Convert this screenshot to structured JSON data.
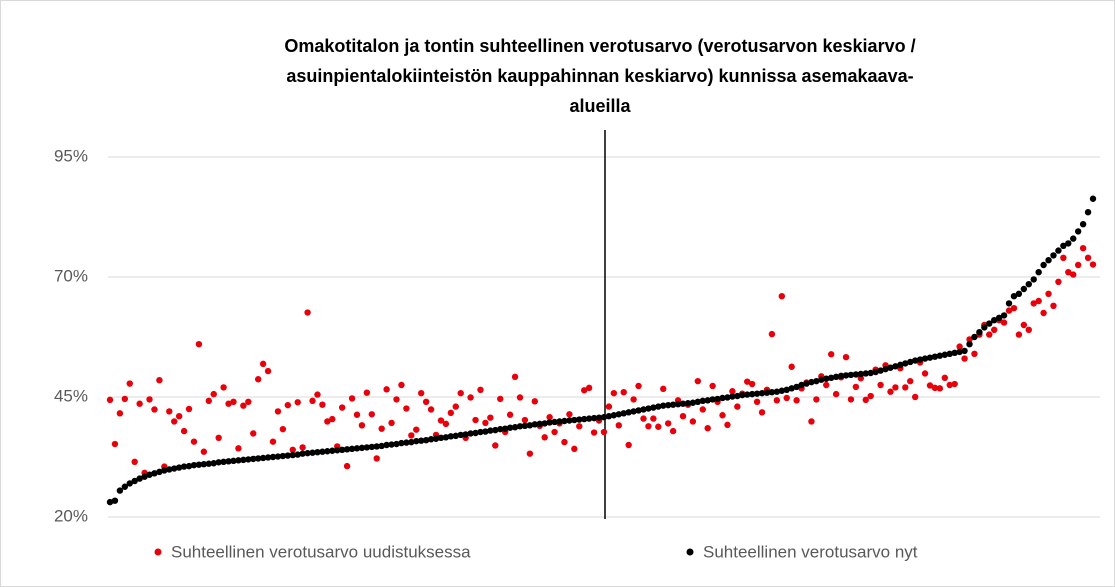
{
  "chart_data": {
    "type": "scatter",
    "title": [
      "Omakotitalon ja tontin suhteellinen verotusarvo (verotusarvon keskiarvo /",
      "asuinpientalokiinteistön kauppahinnan keskiarvo) kunnissa asemakaava-",
      "alueilla"
    ],
    "ylim": [
      20,
      95
    ],
    "yticks": [
      {
        "value": 20,
        "label": "20%"
      },
      {
        "value": 45,
        "label": "45%"
      },
      {
        "value": 70,
        "label": "70%"
      },
      {
        "value": 95,
        "label": "95%"
      }
    ],
    "grid": true,
    "legend": "bottom",
    "series": [
      {
        "name": "Suhteellinen verotusarvo uudistuksessa",
        "color": "#e8000b",
        "values": [
          44.4,
          35.2,
          41.6,
          44.6,
          47.8,
          31.5,
          43.6,
          29.2,
          44.5,
          42.4,
          48.5,
          30.5,
          42.0,
          39.9,
          41.0,
          37.9,
          42.5,
          35.7,
          56.0,
          33.6,
          44.2,
          45.6,
          36.5,
          47.0,
          43.6,
          44.0,
          34.3,
          43.2,
          44.0,
          37.4,
          48.7,
          51.9,
          50.4,
          35.7,
          42.0,
          38.3,
          43.3,
          34.0,
          43.9,
          34.5,
          62.6,
          44.2,
          45.5,
          43.4,
          39.9,
          40.4,
          34.7,
          42.8,
          30.6,
          44.7,
          41.3,
          39.1,
          45.9,
          41.4,
          32.2,
          38.4,
          46.6,
          39.6,
          44.5,
          47.5,
          42.6,
          37.0,
          38.2,
          45.8,
          44.0,
          42.4,
          37.1,
          40.1,
          39.4,
          41.7,
          43.0,
          45.8,
          36.5,
          44.9,
          40.2,
          46.5,
          39.6,
          40.7,
          34.9,
          44.6,
          37.7,
          41.3,
          49.2,
          44.9,
          40.2,
          33.2,
          44.1,
          39.0,
          36.6,
          40.8,
          37.7,
          39.5,
          35.6,
          41.4,
          34.2,
          38.9,
          46.4,
          46.9,
          37.6,
          40.1,
          37.7,
          43.0,
          45.8,
          39.1,
          46.0,
          35.0,
          44.5,
          47.3,
          40.5,
          38.9,
          40.5,
          38.8,
          46.7,
          39.5,
          37.9,
          44.3,
          41.0,
          43.4,
          39.9,
          48.3,
          42.4,
          38.5,
          47.3,
          44.0,
          41.2,
          39.2,
          46.2,
          43.0,
          45.7,
          48.2,
          47.7,
          44.0,
          41.8,
          46.5,
          58.1,
          44.3,
          66.0,
          44.8,
          51.3,
          44.3,
          46.8,
          48.0,
          39.9,
          44.5,
          49.3,
          47.5,
          53.9,
          45.6,
          49.1,
          53.3,
          44.5,
          47.1,
          48.9,
          44.4,
          45.2,
          50.7,
          47.5,
          51.6,
          46.1,
          47.0,
          51.0,
          47.0,
          48.3,
          45.0,
          52.2,
          49.9,
          47.4,
          46.9,
          46.8,
          49.0,
          47.5,
          47.7,
          55.5,
          53.0,
          57.0,
          54.0,
          58.0,
          60.0,
          58.0,
          59.0,
          61.0,
          60.5,
          63.0,
          63.5,
          58.0,
          60.0,
          59.0,
          64.5,
          65.0,
          62.5,
          66.5,
          64.0,
          69.0,
          74.0,
          71.0,
          70.5,
          72.5,
          76.0,
          74.0,
          72.6
        ]
      },
      {
        "name": "Suhteellinen verotusarvo nyt",
        "color": "#000000",
        "values": [
          23.1,
          23.4,
          25.5,
          26.3,
          27.0,
          27.5,
          28.0,
          28.4,
          28.8,
          29.1,
          29.4,
          29.7,
          29.9,
          30.1,
          30.3,
          30.5,
          30.6,
          30.8,
          30.9,
          31.0,
          31.1,
          31.2,
          31.4,
          31.5,
          31.6,
          31.7,
          31.8,
          31.9,
          32.0,
          32.1,
          32.2,
          32.3,
          32.4,
          32.5,
          32.6,
          32.7,
          32.8,
          32.9,
          33.0,
          33.2,
          33.3,
          33.4,
          33.5,
          33.6,
          33.7,
          33.8,
          33.9,
          34.0,
          34.1,
          34.2,
          34.3,
          34.4,
          34.5,
          34.6,
          34.7,
          34.8,
          35.0,
          35.1,
          35.2,
          35.4,
          35.5,
          35.6,
          35.8,
          35.9,
          36.0,
          36.2,
          36.3,
          36.5,
          36.6,
          36.8,
          36.9,
          37.1,
          37.2,
          37.4,
          37.5,
          37.7,
          37.8,
          38.0,
          38.1,
          38.3,
          38.4,
          38.6,
          38.7,
          38.9,
          39.0,
          39.1,
          39.3,
          39.4,
          39.5,
          39.7,
          39.8,
          39.9,
          40.0,
          40.1,
          40.2,
          40.3,
          40.4,
          40.5,
          40.6,
          40.7,
          40.8,
          41.0,
          41.2,
          41.4,
          41.6,
          41.8,
          42.0,
          42.2,
          42.4,
          42.6,
          42.8,
          43.0,
          43.2,
          43.3,
          43.4,
          43.5,
          43.6,
          43.7,
          43.8,
          44.0,
          44.2,
          44.3,
          44.5,
          44.6,
          44.8,
          44.9,
          45.1,
          45.2,
          45.4,
          45.5,
          45.6,
          45.7,
          45.8,
          45.9,
          46.0,
          46.1,
          46.3,
          46.5,
          46.8,
          47.1,
          47.5,
          47.8,
          48.1,
          48.3,
          48.6,
          48.8,
          49.0,
          49.2,
          49.4,
          49.5,
          49.6,
          49.7,
          49.8,
          49.9,
          50.0,
          50.2,
          50.5,
          50.8,
          51.1,
          51.4,
          51.7,
          52.0,
          52.3,
          52.6,
          52.8,
          53.0,
          53.2,
          53.4,
          53.6,
          53.8,
          54.0,
          54.2,
          54.4,
          54.6,
          56.0,
          57.5,
          58.5,
          59.5,
          60.3,
          61.0,
          61.5,
          62.0,
          64.5,
          66.0,
          66.5,
          67.5,
          68.5,
          69.5,
          71.0,
          72.5,
          73.5,
          74.5,
          75.5,
          76.5,
          77.0,
          78.0,
          79.5,
          81.0,
          83.5,
          86.3
        ]
      }
    ]
  }
}
